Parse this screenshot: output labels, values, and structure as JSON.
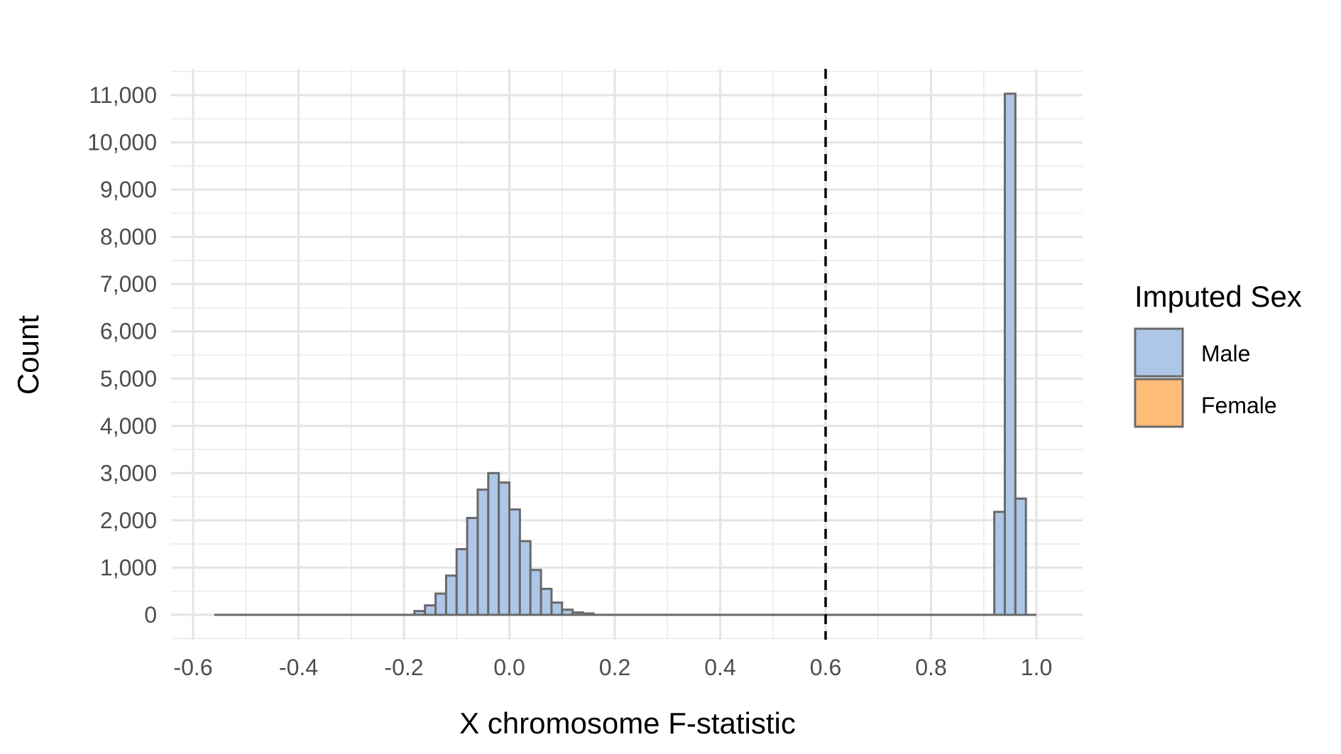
{
  "chart_data": {
    "type": "bar",
    "subtype": "histogram",
    "title": "",
    "xlabel": "X chromosome F-statistic",
    "ylabel": "Count",
    "xlim": [
      -0.6,
      1.08
    ],
    "ylim": [
      -500,
      11500
    ],
    "x_ticks": [
      -0.6,
      -0.4,
      -0.2,
      0.0,
      0.2,
      0.4,
      0.6,
      0.8,
      1.0
    ],
    "x_tick_labels": [
      "-0.6",
      "-0.4",
      "-0.2",
      "0.0",
      "0.2",
      "0.4",
      "0.6",
      "0.8",
      "1.0"
    ],
    "y_ticks": [
      0,
      1000,
      2000,
      3000,
      4000,
      5000,
      6000,
      7000,
      8000,
      9000,
      10000,
      11000
    ],
    "y_tick_labels": [
      "0",
      "1,000",
      "2,000",
      "3,000",
      "4,000",
      "5,000",
      "6,000",
      "7,000",
      "8,000",
      "9,000",
      "10,000",
      "11,000"
    ],
    "grid": true,
    "reference_line": {
      "x": 0.6,
      "style": "dashed",
      "color": "#000000"
    },
    "legend": {
      "title": "Imputed Sex",
      "position": "right",
      "entries": [
        {
          "name": "Male",
          "color": "#aec7e8"
        },
        {
          "name": "Female",
          "color": "#ffbb78"
        }
      ]
    },
    "series": [
      {
        "name": "Male",
        "color": "#aec7e8",
        "bins": [
          {
            "x": -0.18,
            "y": 80
          },
          {
            "x": -0.16,
            "y": 200
          },
          {
            "x": -0.14,
            "y": 450
          },
          {
            "x": -0.12,
            "y": 830
          },
          {
            "x": -0.1,
            "y": 1390
          },
          {
            "x": -0.08,
            "y": 2050
          },
          {
            "x": -0.06,
            "y": 2650
          },
          {
            "x": -0.04,
            "y": 3000
          },
          {
            "x": -0.02,
            "y": 2800
          },
          {
            "x": 0.0,
            "y": 2230
          },
          {
            "x": 0.02,
            "y": 1560
          },
          {
            "x": 0.04,
            "y": 950
          },
          {
            "x": 0.06,
            "y": 550
          },
          {
            "x": 0.08,
            "y": 260
          },
          {
            "x": 0.1,
            "y": 110
          },
          {
            "x": 0.12,
            "y": 50
          },
          {
            "x": 0.14,
            "y": 30
          },
          {
            "x": 0.92,
            "y": 2180
          },
          {
            "x": 0.94,
            "y": 11030
          },
          {
            "x": 0.96,
            "y": 2460
          }
        ]
      }
    ],
    "bin_width": 0.02,
    "bar_outline": "#696969",
    "baseline_x_range": [
      -0.56,
      1.0
    ]
  }
}
